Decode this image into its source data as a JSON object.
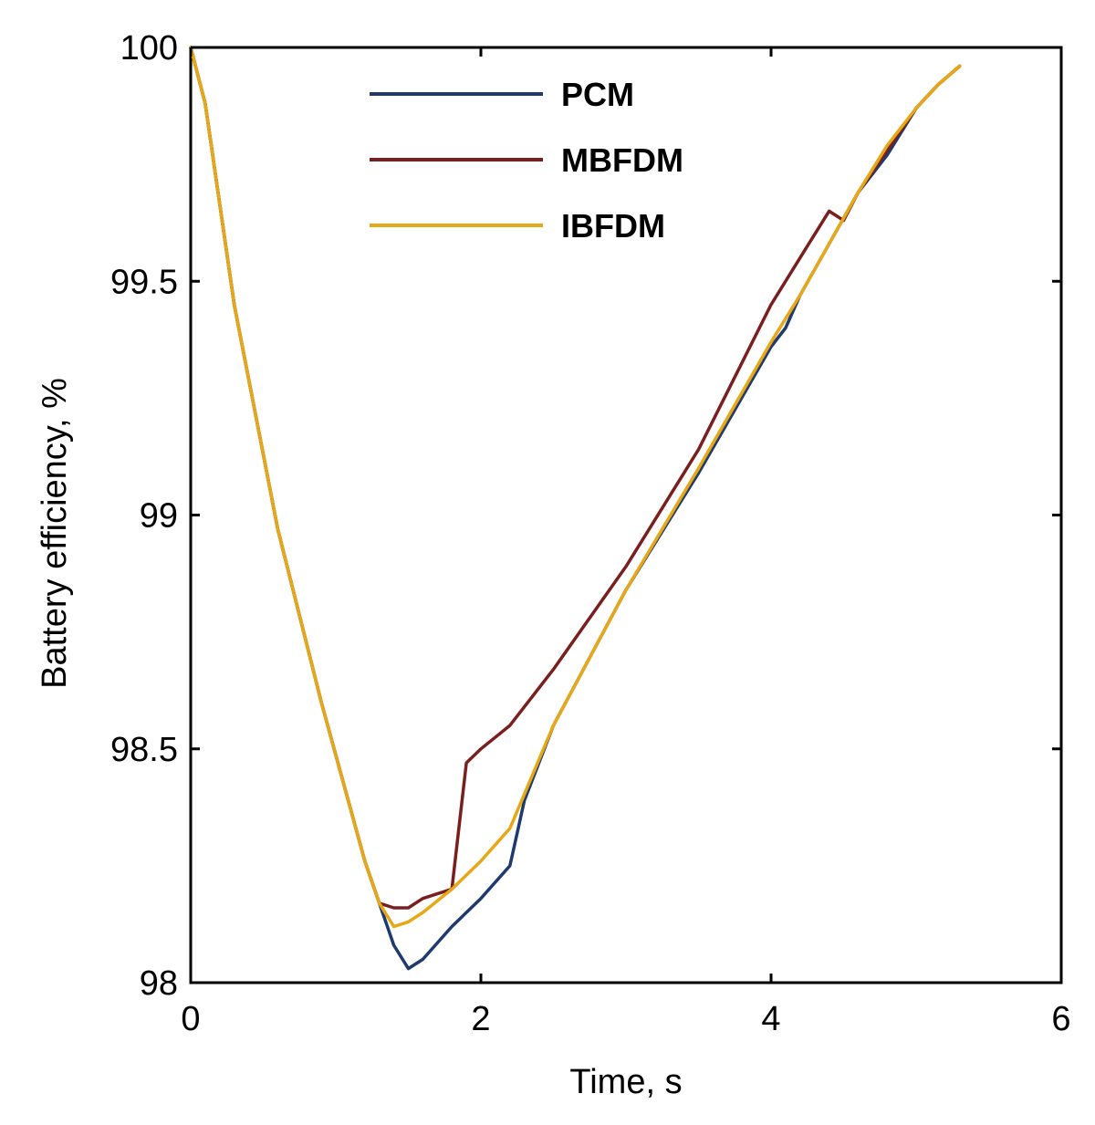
{
  "chart_data": {
    "type": "line",
    "title": "",
    "xlabel": "Time, s",
    "ylabel": "Battery efficiency, %",
    "xlim": [
      0,
      6
    ],
    "ylim": [
      98,
      100
    ],
    "xticks": [
      0,
      2,
      4,
      6
    ],
    "xtick_labels": [
      "0",
      "2",
      "4",
      "6"
    ],
    "yticks": [
      98,
      98.5,
      99,
      99.5,
      100
    ],
    "ytick_labels": [
      "98",
      "98.5",
      "99",
      "99.5",
      "100"
    ],
    "grid": false,
    "legend_position": "top-center",
    "series": [
      {
        "name": "PCM",
        "color": "#1f3a6e",
        "x": [
          0,
          0.1,
          0.3,
          0.6,
          0.9,
          1.2,
          1.3,
          1.4,
          1.5,
          1.6,
          1.8,
          2.0,
          2.2,
          2.25,
          2.3,
          2.5,
          3.0,
          3.5,
          4.0,
          4.05,
          4.1,
          4.2,
          4.4,
          4.6,
          4.8,
          5.0,
          5.15,
          5.3
        ],
        "y": [
          100,
          99.88,
          99.45,
          98.97,
          98.6,
          98.26,
          98.17,
          98.08,
          98.03,
          98.05,
          98.12,
          98.18,
          98.25,
          98.32,
          98.39,
          98.55,
          98.84,
          99.09,
          99.36,
          99.38,
          99.4,
          99.47,
          99.58,
          99.69,
          99.77,
          99.87,
          99.92,
          99.96
        ]
      },
      {
        "name": "MBFDM",
        "color": "#7a1e1e",
        "x": [
          0,
          0.1,
          0.3,
          0.6,
          0.9,
          1.2,
          1.3,
          1.4,
          1.5,
          1.6,
          1.7,
          1.8,
          1.9,
          2.0,
          2.2,
          2.5,
          3.0,
          3.5,
          4.0,
          4.2,
          4.4,
          4.45,
          4.5,
          4.6,
          4.8,
          5.0,
          5.15,
          5.3
        ],
        "y": [
          100,
          99.88,
          99.45,
          98.97,
          98.6,
          98.26,
          98.17,
          98.16,
          98.16,
          98.18,
          98.19,
          98.2,
          98.47,
          98.5,
          98.55,
          98.67,
          98.89,
          99.14,
          99.45,
          99.55,
          99.65,
          99.64,
          99.63,
          99.69,
          99.78,
          99.87,
          99.92,
          99.96
        ]
      },
      {
        "name": "IBFDM",
        "color": "#e6a817",
        "x": [
          0,
          0.1,
          0.3,
          0.6,
          0.9,
          1.2,
          1.3,
          1.4,
          1.5,
          1.6,
          1.8,
          2.0,
          2.2,
          2.5,
          3.0,
          3.5,
          4.0,
          4.2,
          4.4,
          4.6,
          4.8,
          5.0,
          5.15,
          5.3
        ],
        "y": [
          100,
          99.88,
          99.45,
          98.97,
          98.6,
          98.26,
          98.17,
          98.12,
          98.13,
          98.15,
          98.2,
          98.26,
          98.33,
          98.55,
          98.84,
          99.1,
          99.37,
          99.47,
          99.58,
          99.69,
          99.79,
          99.87,
          99.92,
          99.96
        ]
      }
    ]
  }
}
